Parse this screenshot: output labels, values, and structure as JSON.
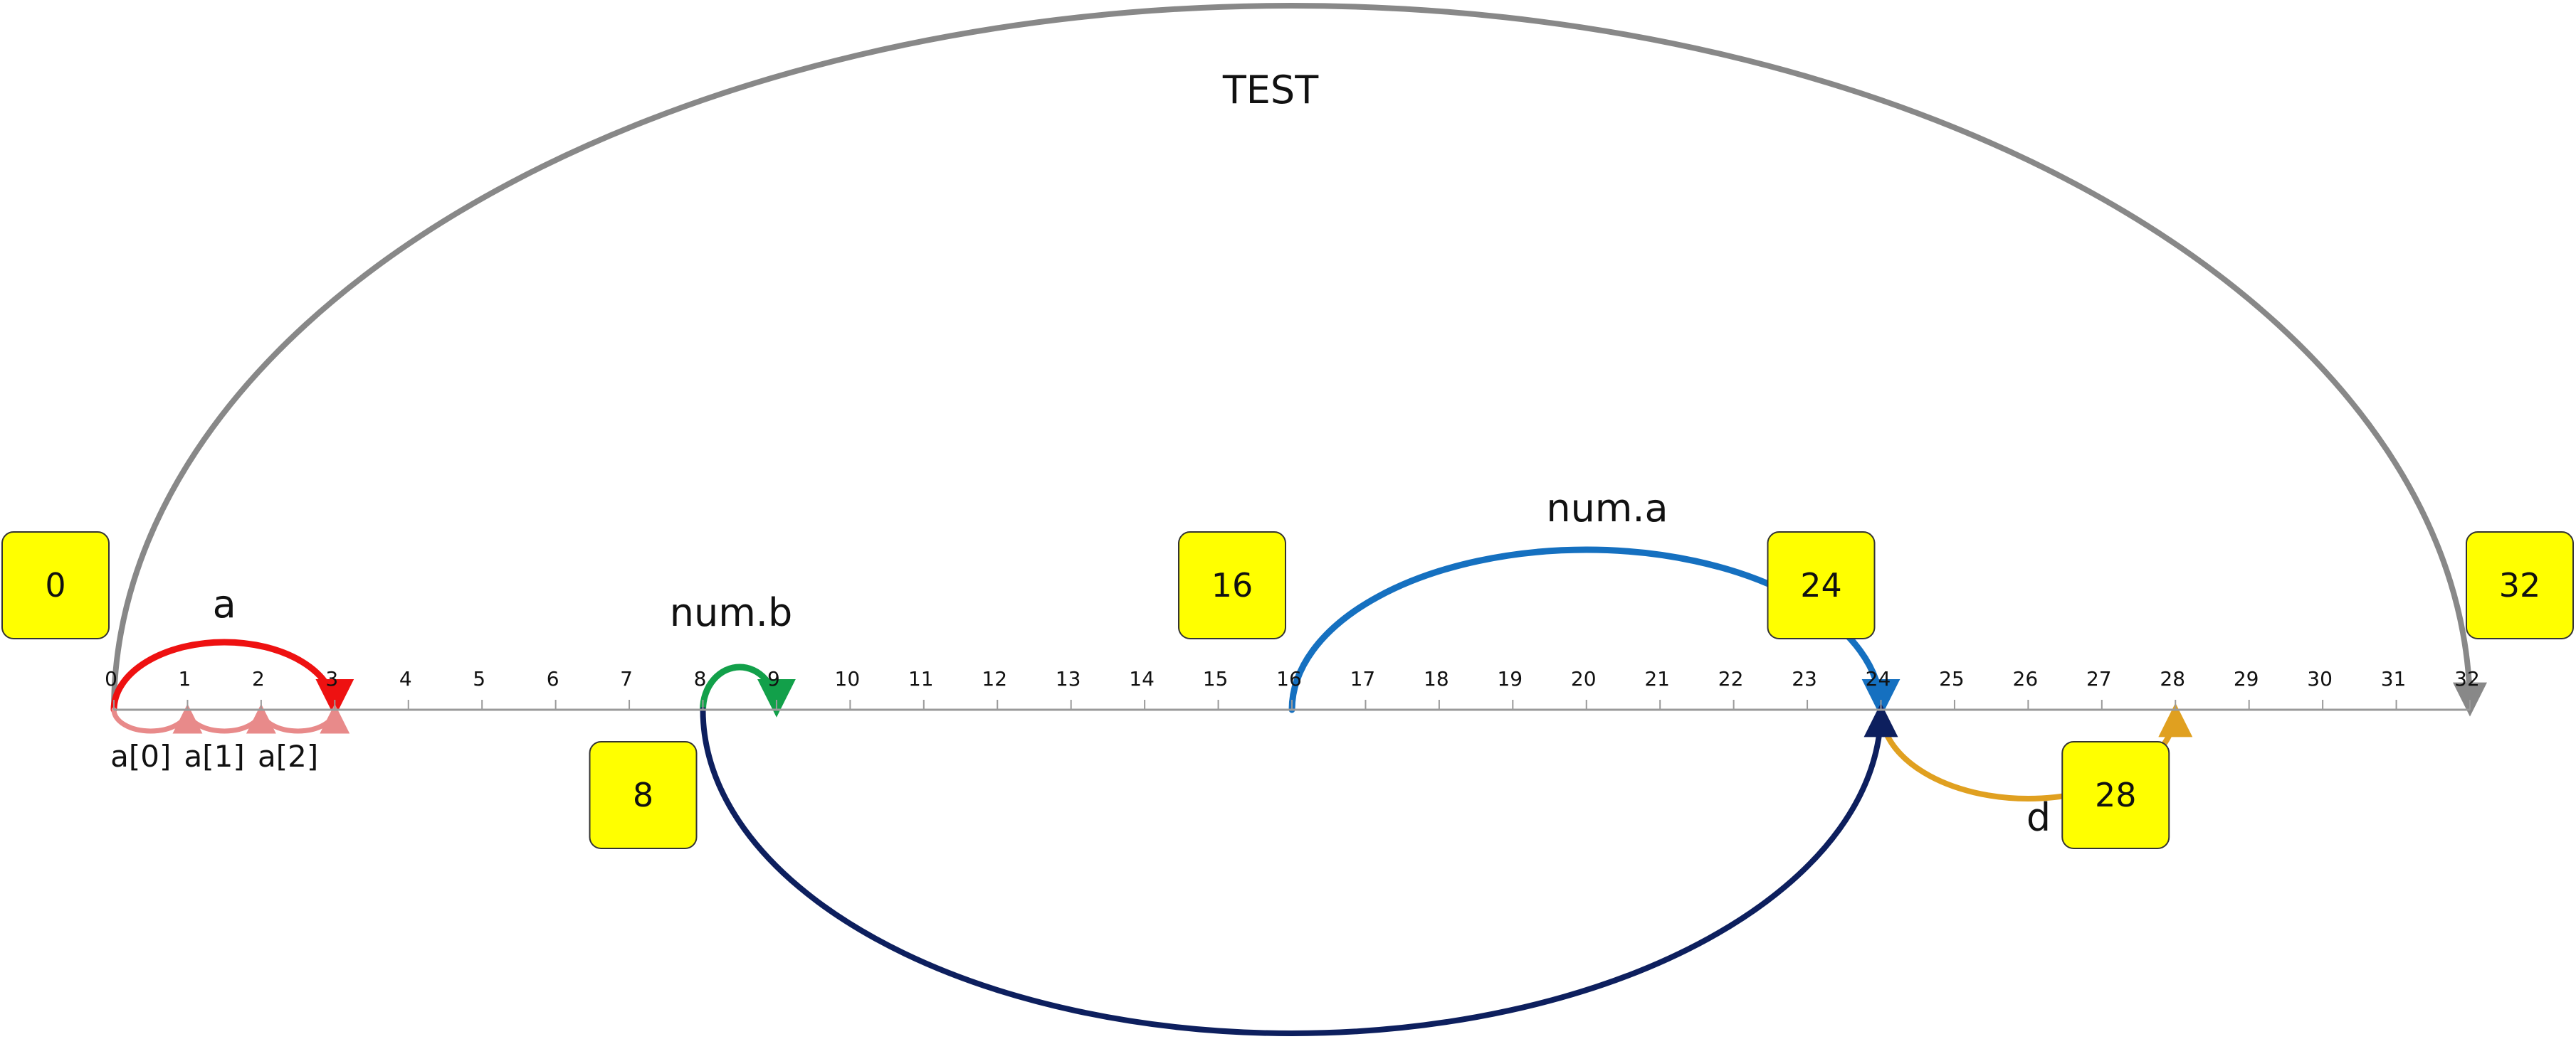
{
  "axis": {
    "min": 0,
    "max": 32,
    "ticks": [
      "0",
      "1",
      "2",
      "3",
      "4",
      "5",
      "6",
      "7",
      "8",
      "9",
      "10",
      "11",
      "12",
      "13",
      "14",
      "15",
      "16",
      "17",
      "18",
      "19",
      "20",
      "21",
      "22",
      "23",
      "24",
      "25",
      "26",
      "27",
      "28",
      "29",
      "30",
      "31",
      "32"
    ],
    "color": "#9a9a9a"
  },
  "markers": [
    {
      "value": 0,
      "label": "0",
      "side": "above"
    },
    {
      "value": 8,
      "label": "8",
      "side": "below"
    },
    {
      "value": 16,
      "label": "16",
      "side": "above"
    },
    {
      "value": 24,
      "label": "24",
      "side": "above"
    },
    {
      "value": 28,
      "label": "28",
      "side": "below"
    },
    {
      "value": 32,
      "label": "32",
      "side": "above"
    }
  ],
  "arcs": [
    {
      "name": "test",
      "from": 0,
      "to": 32,
      "side": "above",
      "label": "TEST",
      "color": "#888888"
    },
    {
      "name": "a",
      "from": 0,
      "to": 3,
      "side": "above",
      "label": "a",
      "color": "#ee1111"
    },
    {
      "name": "a0",
      "from": 0,
      "to": 1,
      "side": "below",
      "label": "a[0]",
      "color": "#e88a8a"
    },
    {
      "name": "a1",
      "from": 1,
      "to": 2,
      "side": "below",
      "label": "a[1]",
      "color": "#e88a8a"
    },
    {
      "name": "a2",
      "from": 2,
      "to": 3,
      "side": "below",
      "label": "a[2]",
      "color": "#e88a8a"
    },
    {
      "name": "num-b",
      "from": 8,
      "to": 9,
      "side": "above",
      "label": "num.b",
      "color": "#12a04a"
    },
    {
      "name": "num-a",
      "from": 16,
      "to": 24,
      "side": "above",
      "label": "num.a",
      "color": "#1570c0"
    },
    {
      "name": "d",
      "from": 24,
      "to": 28,
      "side": "below",
      "label": "d",
      "color": "#e0a020"
    },
    {
      "name": "link",
      "from": 8,
      "to": 24,
      "side": "below",
      "label": "",
      "color": "#0d1f5e"
    }
  ]
}
